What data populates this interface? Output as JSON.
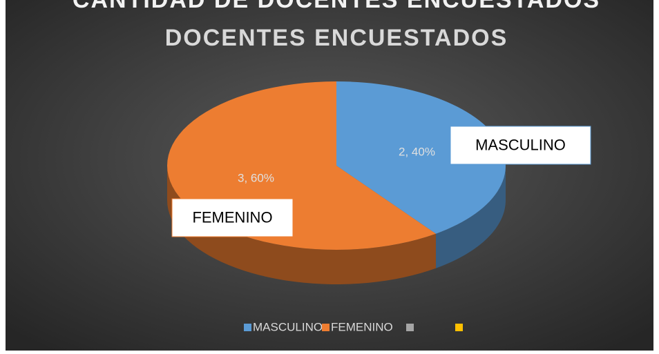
{
  "chart_data": {
    "type": "pie",
    "header": "CANTIDAD DE DOCENTES ENCUESTADOS",
    "title": "DOCENTES ENCUESTADOS",
    "categories": [
      "MASCULINO",
      "FEMENINO",
      null,
      null
    ],
    "values": [
      2,
      3,
      0,
      0
    ],
    "value_labels": [
      "2, 40%",
      "3, 60%",
      null,
      null
    ],
    "colors": [
      "#5b9bd5",
      "#ed7d31",
      "#a5a5a5",
      "#ffc000"
    ],
    "legend": "bottom"
  }
}
